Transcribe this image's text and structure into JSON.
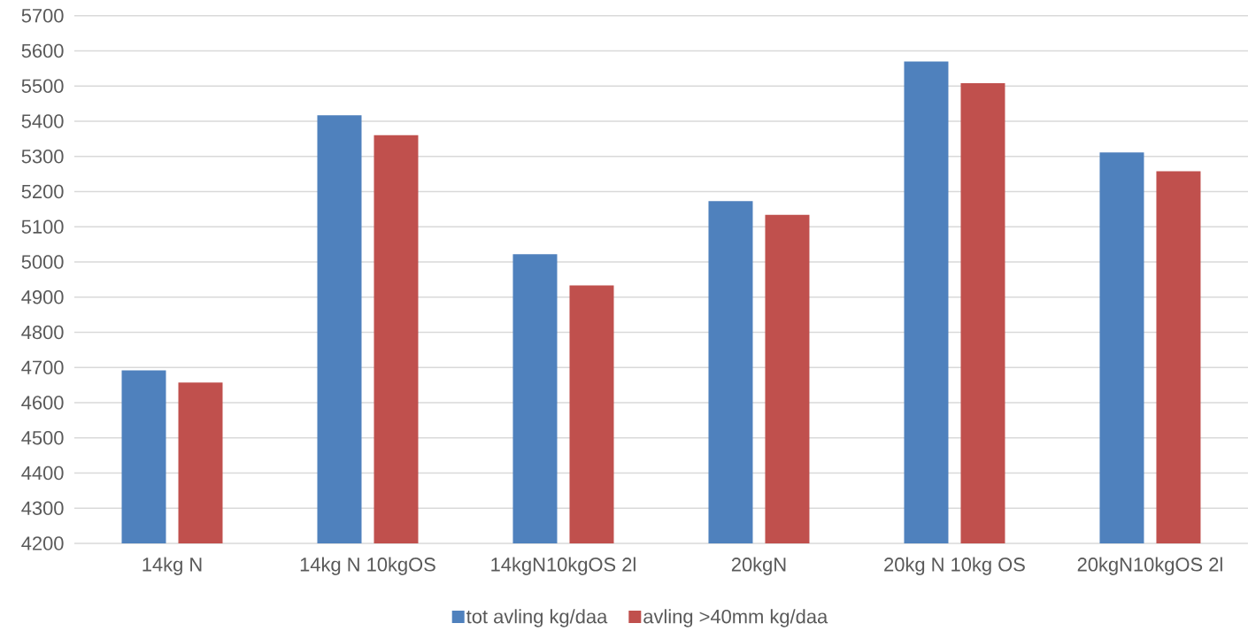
{
  "chart_data": {
    "type": "bar",
    "categories": [
      "14kg N",
      "14kg N 10kgOS",
      "14kgN10kgOS 2l",
      "20kgN",
      "20kg N 10kg OS",
      "20kgN10kgOS 2l"
    ],
    "series": [
      {
        "name": "tot avling kg/daa",
        "color": "#4f81bd",
        "values": [
          4692,
          5417,
          5022,
          5173,
          5570,
          5311
        ]
      },
      {
        "name": "avling >40mm kg/daa",
        "color": "#c0504d",
        "values": [
          4657,
          5360,
          4933,
          5134,
          5508,
          5258
        ]
      }
    ],
    "ylim": [
      4200,
      5700
    ],
    "yticks": [
      4200,
      4300,
      4400,
      4500,
      4600,
      4700,
      4800,
      4900,
      5000,
      5100,
      5200,
      5300,
      5400,
      5500,
      5600,
      5700
    ],
    "grid": "y",
    "legend": "bottom"
  }
}
